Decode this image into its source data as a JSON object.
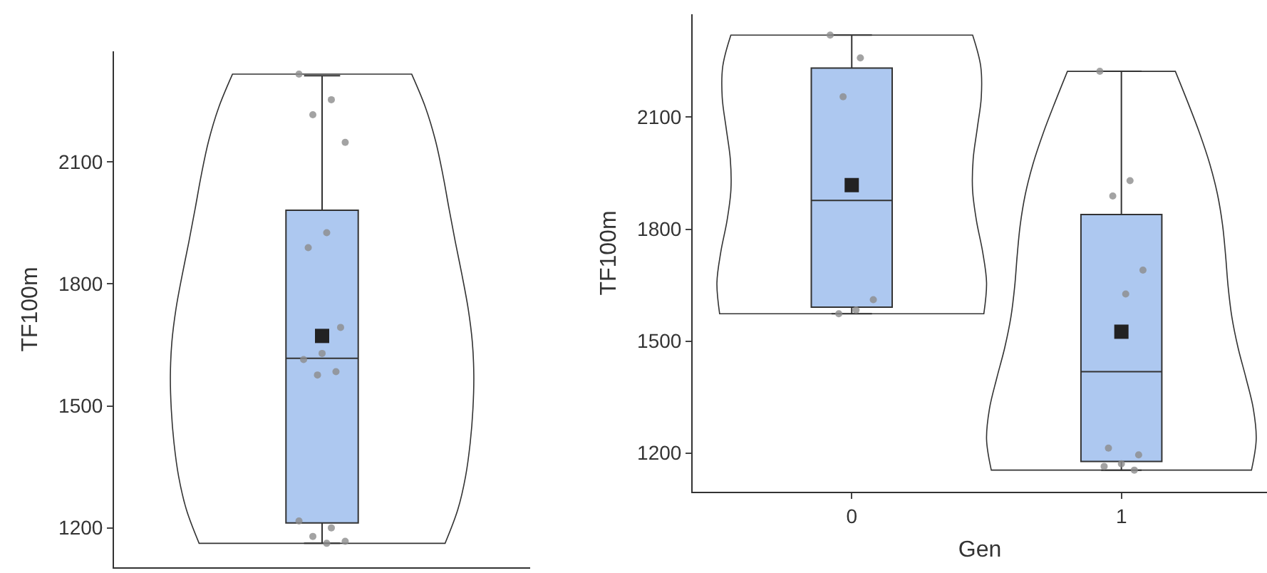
{
  "chart_data": [
    {
      "type": "box",
      "ylabel": "TF100m",
      "categories": [
        null
      ],
      "ylim": [
        1103,
        2372
      ],
      "yticks": [
        1200,
        1500,
        1800,
        2100
      ],
      "grid": false,
      "tick_labels": "y",
      "series": [
        {
          "type": "box",
          "color": "#adc8f0",
          "boxes": [
            {
              "low": 1162,
              "q1": 1212,
              "median": 1617,
              "q3": 1981,
              "high": 2312,
              "mean": 1672
            }
          ]
        },
        {
          "type": "scatter",
          "color": "#8c8c8c",
          "x": [
            null,
            null,
            null,
            null,
            null,
            null,
            null,
            null,
            null,
            null,
            null,
            null,
            null,
            null,
            null,
            null
          ],
          "values": [
            2316,
            2253,
            2216,
            2148,
            1926,
            1889,
            1693,
            1629,
            1614,
            1584,
            1576,
            1217,
            1200,
            1179,
            1167,
            1162
          ]
        }
      ]
    },
    {
      "type": "box",
      "ylabel": "TF100m",
      "xlabel": "Gen",
      "categories": [
        "0",
        "1"
      ],
      "ylim": [
        1096,
        2376
      ],
      "yticks": [
        1200,
        1500,
        1800,
        2100
      ],
      "grid": false,
      "series": [
        {
          "type": "box",
          "color": "#adc8f0",
          "boxes": [
            {
              "low": 1573,
              "q1": 1591,
              "median": 1877,
              "q3": 2232,
              "high": 2320,
              "mean": 1918
            },
            {
              "low": 1154,
              "q1": 1177,
              "median": 1418,
              "q3": 1839,
              "high": 2223,
              "mean": 1525
            }
          ]
        },
        {
          "type": "scatter",
          "color": "#8c8c8c",
          "x": [
            "0",
            "0",
            "0",
            "0",
            "0",
            "0",
            "1",
            "1",
            "1",
            "1",
            "1",
            "1",
            "1",
            "1",
            "1",
            "1"
          ],
          "values": [
            2320,
            2259,
            2155,
            1611,
            1583,
            1573,
            2223,
            1930,
            1889,
            1690,
            1626,
            1213,
            1195,
            1171,
            1164,
            1154
          ]
        }
      ]
    }
  ]
}
